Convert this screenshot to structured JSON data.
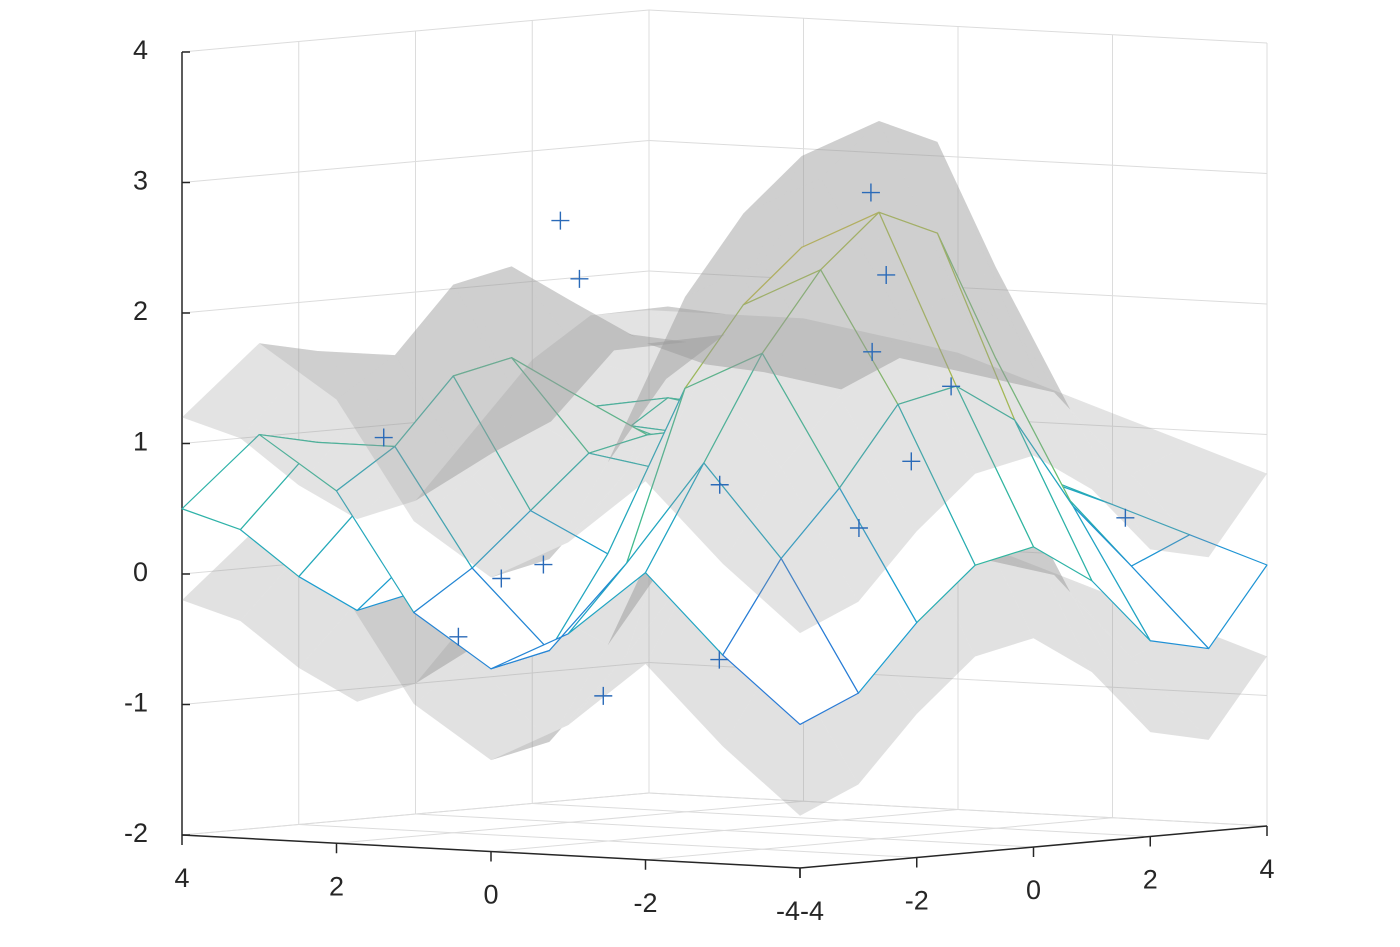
{
  "chart_data": {
    "type": "surface3d",
    "x": [
      -4,
      -3,
      -2,
      -1,
      0,
      1,
      2,
      3,
      4
    ],
    "y": [
      -4,
      -3,
      -2,
      -1,
      0,
      1,
      2,
      3,
      4
    ],
    "z": [
      [
        -0.9,
        -0.4,
        0.2,
        -0.3,
        -0.6,
        -0.2,
        0.7,
        1.1,
        0.5
      ],
      [
        -0.7,
        0.3,
        1.0,
        0.2,
        -0.5,
        0.1,
        1.0,
        1.0,
        0.3
      ],
      [
        -0.2,
        0.8,
        1.8,
        1.5,
        0.2,
        0.5,
        1.5,
        0.6,
        -0.1
      ],
      [
        0.2,
        1.4,
        2.4,
        2.1,
        0.8,
        0.9,
        1.6,
        0.2,
        -0.4
      ],
      [
        0.3,
        1.5,
        2.8,
        2.5,
        1.1,
        1.0,
        1.3,
        0.1,
        -0.3
      ],
      [
        0.0,
        1.2,
        2.6,
        2.1,
        0.9,
        0.8,
        1.0,
        0.3,
        0.2
      ],
      [
        -0.5,
        0.5,
        1.6,
        1.2,
        0.6,
        0.7,
        0.9,
        0.8,
        0.7
      ],
      [
        -0.6,
        0.0,
        0.6,
        0.7,
        0.8,
        0.9,
        1.0,
        1.1,
        1.0
      ],
      [
        0.0,
        0.2,
        0.4,
        0.6,
        0.8,
        0.9,
        1.0,
        1.0,
        1.0
      ]
    ],
    "upper": [
      [
        -0.2,
        0.3,
        0.9,
        0.4,
        0.1,
        0.5,
        1.4,
        1.8,
        1.2
      ],
      [
        0.0,
        1.0,
        1.7,
        0.9,
        0.2,
        0.8,
        1.7,
        1.7,
        1.0
      ],
      [
        0.5,
        1.5,
        2.5,
        2.2,
        0.9,
        1.2,
        2.2,
        1.3,
        0.6
      ],
      [
        0.9,
        2.1,
        3.1,
        2.8,
        1.5,
        1.6,
        2.3,
        0.9,
        0.3
      ],
      [
        1.0,
        2.2,
        3.5,
        3.2,
        1.8,
        1.7,
        2.0,
        0.8,
        0.4
      ],
      [
        0.7,
        1.9,
        3.3,
        2.8,
        1.6,
        1.5,
        1.7,
        1.0,
        0.9
      ],
      [
        0.2,
        1.2,
        2.3,
        1.9,
        1.3,
        1.4,
        1.6,
        1.5,
        1.4
      ],
      [
        0.1,
        0.7,
        1.3,
        1.4,
        1.5,
        1.6,
        1.7,
        1.8,
        1.7
      ],
      [
        0.7,
        0.9,
        1.1,
        1.3,
        1.5,
        1.6,
        1.7,
        1.7,
        1.7
      ]
    ],
    "lower": [
      [
        -1.6,
        -1.1,
        -0.5,
        -1.0,
        -1.3,
        -0.9,
        0.0,
        0.4,
        -0.2
      ],
      [
        -1.4,
        -0.4,
        0.3,
        -0.5,
        -1.2,
        -0.6,
        0.3,
        0.3,
        -0.4
      ],
      [
        -0.9,
        0.1,
        1.1,
        0.8,
        -0.5,
        -0.2,
        0.8,
        -0.1,
        -0.8
      ],
      [
        -0.5,
        0.7,
        1.7,
        1.4,
        0.1,
        0.2,
        0.9,
        -0.5,
        -1.1
      ],
      [
        -0.4,
        0.8,
        2.1,
        1.8,
        0.4,
        0.3,
        0.6,
        -0.6,
        -1.0
      ],
      [
        -0.7,
        0.5,
        1.9,
        1.4,
        0.2,
        0.1,
        0.3,
        -0.4,
        -0.5
      ],
      [
        -1.2,
        -0.2,
        0.9,
        0.5,
        -0.1,
        0.0,
        0.2,
        0.1,
        0.0
      ],
      [
        -1.3,
        -0.7,
        -0.1,
        0.0,
        0.1,
        0.2,
        0.3,
        0.4,
        0.3
      ],
      [
        -0.7,
        -0.5,
        -0.3,
        -0.1,
        0.1,
        0.2,
        0.3,
        0.3,
        0.3
      ]
    ],
    "points": {
      "x": [
        2.2,
        1.5,
        0.8,
        -1.0,
        -0.4,
        -2.5,
        -3.0,
        1.8,
        2.9,
        0.3,
        -1.8,
        -2.2,
        3.1,
        -3.3,
        0.0,
        1.0
      ],
      "y": [
        0.1,
        -0.5,
        -3.5,
        -3.4,
        2.0,
        -0.8,
        -1.2,
        2.3,
        -2.0,
        2.7,
        1.5,
        -3.0,
        1.0,
        2.5,
        3.2,
        -2.5
      ],
      "z": [
        2.6,
        2.2,
        -0.4,
        -0.8,
        1.6,
        3.0,
        2.4,
        0.5,
        1.0,
        0.2,
        1.4,
        -0.5,
        -0.1,
        0.4,
        0.7,
        0.0
      ]
    },
    "marker_color": "#2a6ab8",
    "colormap": [
      "#3e4fd8",
      "#1a9cd4",
      "#35bb97",
      "#a9c43c",
      "#f1c01f"
    ],
    "clim": [
      -1,
      3
    ],
    "band_color": "#9a9a9a",
    "xlim": [
      -4,
      4
    ],
    "ylim": [
      -4,
      4
    ],
    "zlim": [
      -2,
      4
    ],
    "xticks": [
      -4,
      -2,
      0,
      2,
      4
    ],
    "yticks": [
      -4,
      -2,
      0,
      2,
      4
    ],
    "zticks": [
      -2,
      -1,
      0,
      1,
      2,
      3,
      4
    ],
    "grid": true
  }
}
